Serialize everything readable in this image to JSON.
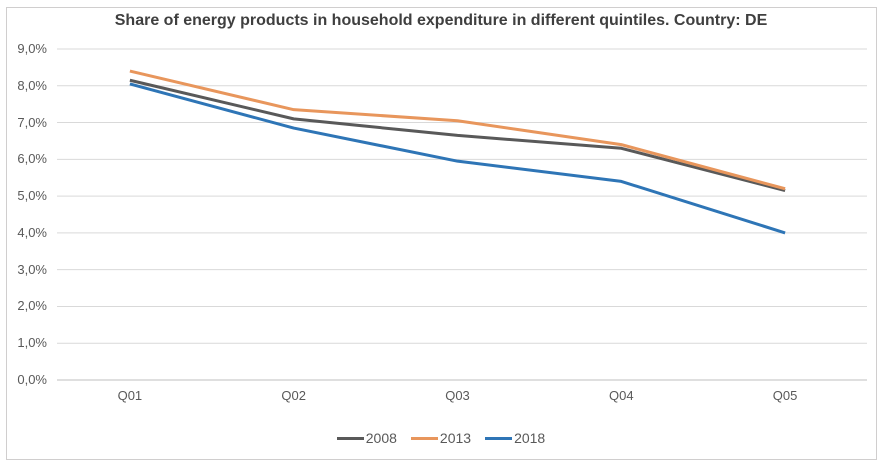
{
  "chart_data": {
    "type": "line",
    "title": "Share of energy products in household expenditure in different quintiles. Country: DE",
    "categories": [
      "Q01",
      "Q02",
      "Q03",
      "Q04",
      "Q05"
    ],
    "series": [
      {
        "name": "2008",
        "color": "#595959",
        "values": [
          8.15,
          7.1,
          6.65,
          6.3,
          5.15
        ]
      },
      {
        "name": "2013",
        "color": "#E8965C",
        "values": [
          8.4,
          7.35,
          7.05,
          6.4,
          5.2
        ]
      },
      {
        "name": "2018",
        "color": "#2E75B6",
        "values": [
          8.05,
          6.85,
          5.95,
          5.4,
          4.0
        ]
      }
    ],
    "xlabel": "",
    "ylabel": "",
    "ylim": [
      0,
      9
    ],
    "ytick_step": 1,
    "ytick_labels": [
      "0,0%",
      "1,0%",
      "2,0%",
      "3,0%",
      "4,0%",
      "5,0%",
      "6,0%",
      "7,0%",
      "8,0%",
      "9,0%"
    ],
    "grid": "horizontal",
    "legend_position": "bottom",
    "colors": {
      "gridline": "#D9D9D9",
      "axis_line": "#BFBFBF",
      "axis_text": "#595959",
      "title_text": "#3F3F3F",
      "background": "#FFFFFF",
      "frame_border": "#D0CECE"
    }
  }
}
